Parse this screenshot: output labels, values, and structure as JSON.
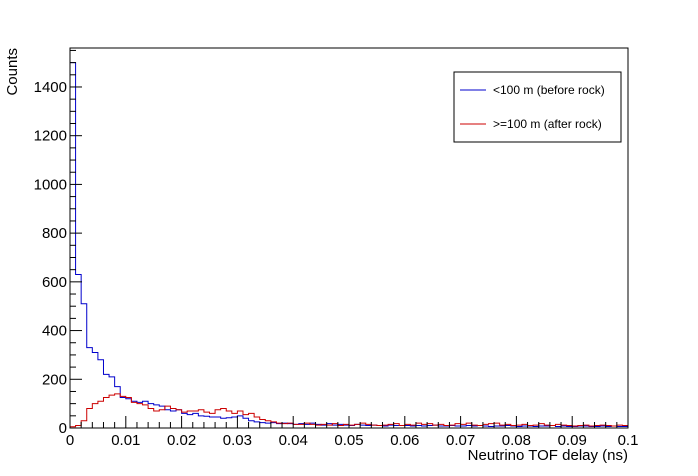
{
  "chart_data": {
    "type": "line",
    "xlabel": "Neutrino TOF delay (ns)",
    "ylabel": "Counts",
    "xlim": [
      0,
      0.1
    ],
    "ylim": [
      0,
      1560
    ],
    "x_ticks": [
      0,
      0.01,
      0.02,
      0.03,
      0.04,
      0.05,
      0.06,
      0.07,
      0.08,
      0.09,
      0.1
    ],
    "x_tick_labels": [
      "0",
      "0.01",
      "0.02",
      "0.03",
      "0.04",
      "0.05",
      "0.06",
      "0.07",
      "0.08",
      "0.09",
      "0.1"
    ],
    "y_ticks": [
      0,
      200,
      400,
      600,
      800,
      1000,
      1200,
      1400
    ],
    "y_tick_labels": [
      "0",
      "200",
      "400",
      "600",
      "800",
      "1000",
      "1200",
      "1400"
    ],
    "bin_width": 0.001,
    "bin_start": 0,
    "grid": false,
    "legend_position": "top-right",
    "series": [
      {
        "name": "<100 m (before rock)",
        "color": "#0000cc",
        "values": [
          1500,
          630,
          510,
          330,
          310,
          280,
          220,
          210,
          170,
          125,
          120,
          110,
          105,
          110,
          100,
          95,
          90,
          75,
          70,
          75,
          60,
          55,
          60,
          50,
          48,
          45,
          45,
          40,
          42,
          45,
          50,
          40,
          30,
          25,
          22,
          20,
          22,
          18,
          20,
          18,
          15,
          18,
          15,
          20,
          15,
          12,
          18,
          12,
          15,
          12,
          10,
          15,
          12,
          10,
          12,
          10,
          8,
          12,
          10,
          10,
          10,
          8,
          10,
          8,
          10,
          12,
          8,
          8,
          10,
          8,
          8,
          10,
          8,
          10,
          8,
          6,
          8,
          8,
          10,
          8,
          6,
          8,
          8,
          6,
          8,
          8,
          10,
          6,
          8,
          6,
          6,
          8,
          8,
          6,
          6,
          8,
          6,
          8,
          6,
          6
        ]
      },
      {
        "name": ">=100 m (after rock)",
        "color": "#cc0000",
        "values": [
          5,
          10,
          30,
          80,
          100,
          110,
          125,
          135,
          140,
          130,
          125,
          105,
          100,
          95,
          80,
          70,
          75,
          90,
          80,
          75,
          65,
          70,
          70,
          75,
          65,
          60,
          75,
          80,
          70,
          60,
          70,
          55,
          60,
          45,
          35,
          30,
          25,
          20,
          18,
          20,
          15,
          15,
          20,
          15,
          12,
          15,
          12,
          18,
          10,
          15,
          12,
          15,
          20,
          15,
          12,
          10,
          12,
          15,
          18,
          10,
          15,
          12,
          20,
          15,
          18,
          12,
          15,
          10,
          12,
          18,
          15,
          20,
          12,
          10,
          15,
          18,
          20,
          12,
          15,
          10,
          12,
          15,
          10,
          12,
          18,
          12,
          10,
          15,
          12,
          10,
          8,
          10,
          12,
          8,
          10,
          12,
          10,
          8,
          12,
          10
        ]
      }
    ]
  }
}
